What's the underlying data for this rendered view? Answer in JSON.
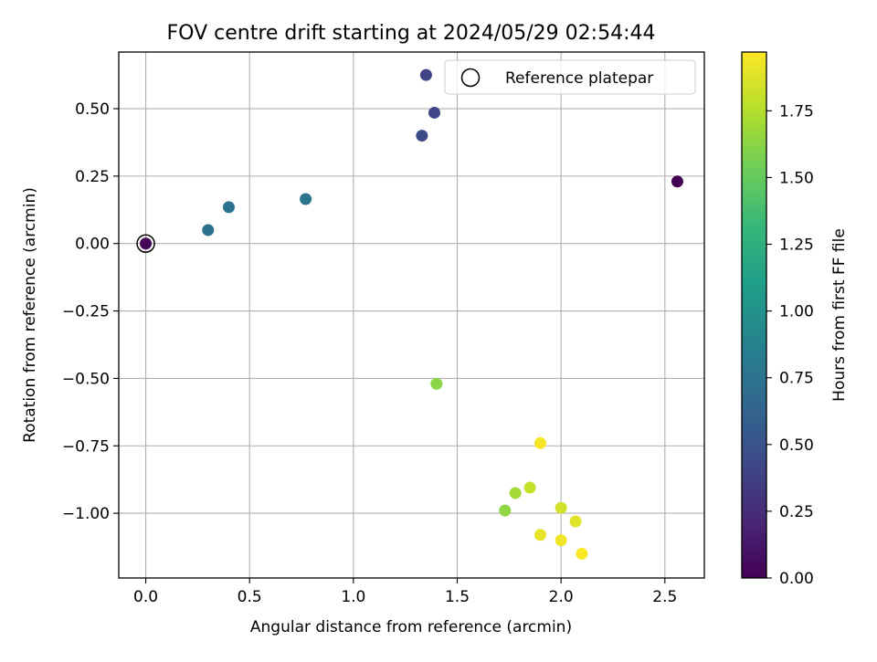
{
  "chart_data": {
    "type": "scatter",
    "title": "FOV centre drift starting at 2024/05/29 02:54:44",
    "xlabel": "Angular distance from reference (arcmin)",
    "ylabel": "Rotation from reference (arcmin)",
    "xlim": [
      -0.13,
      2.69
    ],
    "ylim": [
      -1.24,
      0.71
    ],
    "xticks": [
      0.0,
      0.5,
      1.0,
      1.5,
      2.0,
      2.5
    ],
    "xtick_labels": [
      "0.0",
      "0.5",
      "1.0",
      "1.5",
      "2.0",
      "2.5"
    ],
    "yticks": [
      -1.0,
      -0.75,
      -0.5,
      -0.25,
      0.0,
      0.25,
      0.5
    ],
    "ytick_labels": [
      "−1.00",
      "−0.75",
      "−0.50",
      "−0.25",
      "0.00",
      "0.25",
      "0.50"
    ],
    "grid": true,
    "legend": {
      "placement": "top-right",
      "entries": [
        "Reference platepar"
      ]
    },
    "colorbar": {
      "label": "Hours from first FF file",
      "colormap": "viridis",
      "range": [
        0.0,
        1.97
      ],
      "ticks": [
        0.0,
        0.25,
        0.5,
        0.75,
        1.0,
        1.25,
        1.5,
        1.75
      ],
      "tick_labels": [
        "0.00",
        "0.25",
        "0.50",
        "0.75",
        "1.00",
        "1.25",
        "1.50",
        "1.75"
      ]
    },
    "reference_point": {
      "x": 0.0,
      "y": 0.0,
      "name": "Reference platepar"
    },
    "points": [
      {
        "x": 2.56,
        "y": 0.23,
        "hours": 0.0
      },
      {
        "x": 0.0,
        "y": 0.0,
        "hours": 0.02
      },
      {
        "x": 1.35,
        "y": 0.625,
        "hours": 0.4
      },
      {
        "x": 1.39,
        "y": 0.485,
        "hours": 0.42
      },
      {
        "x": 1.33,
        "y": 0.4,
        "hours": 0.45
      },
      {
        "x": 0.3,
        "y": 0.05,
        "hours": 0.73
      },
      {
        "x": 0.4,
        "y": 0.135,
        "hours": 0.74
      },
      {
        "x": 0.77,
        "y": 0.165,
        "hours": 0.76
      },
      {
        "x": 1.4,
        "y": -0.52,
        "hours": 1.62
      },
      {
        "x": 1.73,
        "y": -0.99,
        "hours": 1.64
      },
      {
        "x": 1.78,
        "y": -0.925,
        "hours": 1.7
      },
      {
        "x": 1.85,
        "y": -0.905,
        "hours": 1.8
      },
      {
        "x": 2.0,
        "y": -0.98,
        "hours": 1.84
      },
      {
        "x": 2.07,
        "y": -1.03,
        "hours": 1.88
      },
      {
        "x": 1.9,
        "y": -1.08,
        "hours": 1.9
      },
      {
        "x": 2.0,
        "y": -1.1,
        "hours": 1.93
      },
      {
        "x": 1.9,
        "y": -0.74,
        "hours": 1.95
      },
      {
        "x": 2.1,
        "y": -1.15,
        "hours": 1.96
      }
    ]
  }
}
